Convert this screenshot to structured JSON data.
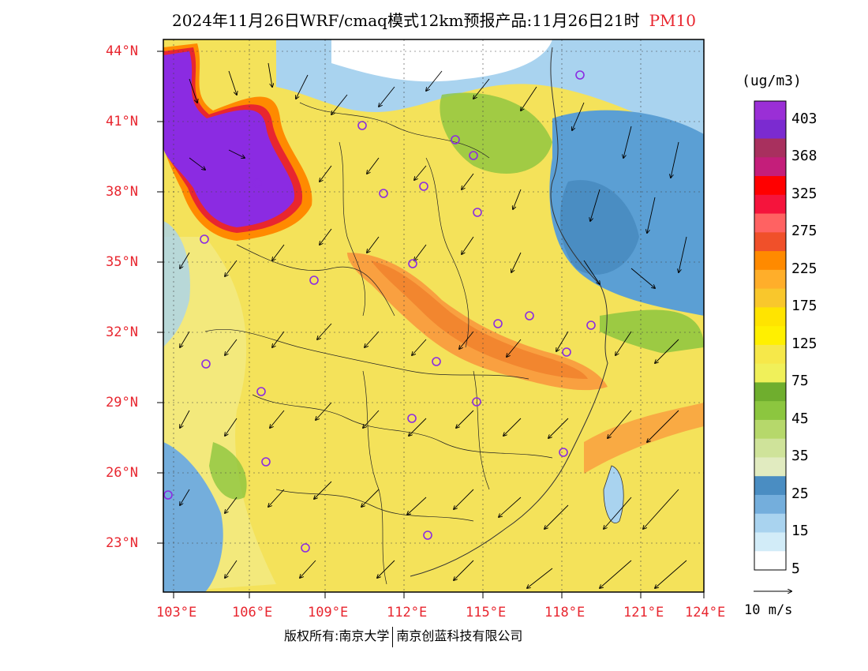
{
  "title": {
    "text": "2024年11月26日WRF/cmaq模式12km预报产品:11月26日21时",
    "species": "PM10"
  },
  "axes": {
    "lat_labels": [
      "44°N",
      "41°N",
      "38°N",
      "35°N",
      "32°N",
      "29°N",
      "26°N",
      "23°N"
    ],
    "lon_labels": [
      "103°E",
      "106°E",
      "109°E",
      "112°E",
      "115°E",
      "118°E",
      "121°E",
      "124°E"
    ]
  },
  "colorbar": {
    "unit": "(ug/m3)",
    "labels": [
      "403",
      "368",
      "325",
      "275",
      "225",
      "175",
      "125",
      "75",
      "45",
      "35",
      "25",
      "15",
      "5"
    ],
    "colors": [
      "#9a2fd6",
      "#7b2bd0",
      "#a8305e",
      "#c41e7a",
      "#ff0000",
      "#f5143c",
      "#ff6262",
      "#f0502a",
      "#ff8a00",
      "#ffae2a",
      "#f9c72c",
      "#ffe400",
      "#fff000",
      "#f6e84a",
      "#f0f05a",
      "#6fae2e",
      "#8cc63f",
      "#b6d86b",
      "#cfe39a",
      "#e1ebc0",
      "#4a8dc2",
      "#74aedc",
      "#a9d3ef",
      "#d2ecf8",
      "#ffffff"
    ]
  },
  "vector_reference": {
    "label": "10 m/s"
  },
  "footer": {
    "left": "版权所有:南京大学",
    "right": "南京创蓝科技有限公司"
  },
  "colors": {
    "label_red": "#e8262f",
    "high_purple": "#8b2be2",
    "sea_blue": "#5b9fd4",
    "land_yellow": "#f4e25a"
  }
}
